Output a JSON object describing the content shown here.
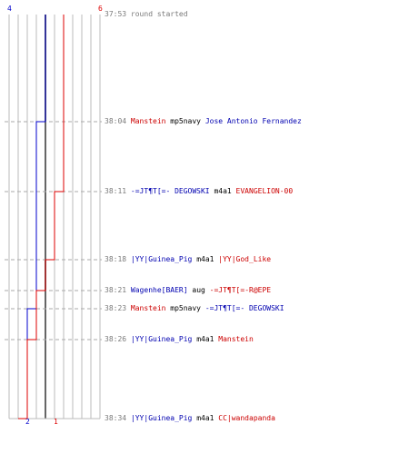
{
  "scoreboard": {
    "blue_start": "4",
    "red_start": "6",
    "blue_end": "2",
    "red_end": "1"
  },
  "events": [
    {
      "time": "37:53",
      "kind": "info",
      "text": "round started"
    },
    {
      "time": "38:04",
      "kind": "kill",
      "killer": "Manstein",
      "weapon": "mp5navy",
      "victim": "Jose Antonio Fernandez",
      "killer_team": "red",
      "victim_team": "blue"
    },
    {
      "time": "38:11",
      "kind": "kill",
      "killer": "-=JT¶T[=- DEGOWSKI",
      "weapon": "m4a1",
      "victim": "EVANGELION-00",
      "killer_team": "blue",
      "victim_team": "red"
    },
    {
      "time": "38:18",
      "kind": "kill",
      "killer": "|YY|Guinea_Pig",
      "weapon": "m4a1",
      "victim": "|YY|God_Like",
      "killer_team": "blue",
      "victim_team": "red"
    },
    {
      "time": "38:21",
      "kind": "kill",
      "killer": "Wagenhe[BAER]",
      "weapon": "aug",
      "victim": "-=JT¶T[=-R@EPE",
      "killer_team": "blue",
      "victim_team": "red"
    },
    {
      "time": "38:23",
      "kind": "kill",
      "killer": "Manstein",
      "weapon": "mp5navy",
      "victim": "-=JT¶T[=- DEGOWSKI",
      "killer_team": "red",
      "victim_team": "blue"
    },
    {
      "time": "38:26",
      "kind": "kill",
      "killer": "|YY|Guinea_Pig",
      "weapon": "m4a1",
      "victim": "Manstein",
      "killer_team": "blue",
      "victim_team": "red"
    },
    {
      "time": "38:34",
      "kind": "kill",
      "killer": "|YY|Guinea_Pig",
      "weapon": "m4a1",
      "victim": "CC|wandapanda",
      "killer_team": "blue",
      "victim_team": "red"
    }
  ],
  "colors": {
    "blue_team": "#0000cc",
    "red_team": "#dd0000",
    "grid": "#bbbbbb",
    "grid_dark": "#666666",
    "dashed": "#aaaaaa",
    "time_text": "#7a7a7a",
    "weapon_text": "#000000"
  }
}
